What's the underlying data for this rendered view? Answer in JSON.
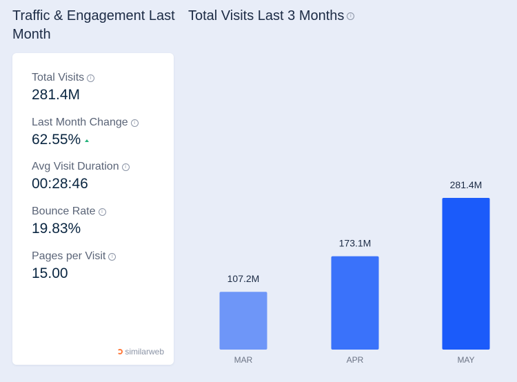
{
  "left_panel": {
    "title": "Traffic & Engagement Last Month",
    "metrics": [
      {
        "label": "Total Visits",
        "value": "281.4M"
      },
      {
        "label": "Last Month Change",
        "value": "62.55%",
        "trend": "up"
      },
      {
        "label": "Avg Visit Duration",
        "value": "00:28:46"
      },
      {
        "label": "Bounce Rate",
        "value": "19.83%"
      },
      {
        "label": "Pages per Visit",
        "value": "15.00"
      }
    ],
    "brand": "similarweb"
  },
  "chart_data": {
    "type": "bar",
    "title": "Total Visits Last 3 Months",
    "categories": [
      "MAR",
      "APR",
      "MAY"
    ],
    "values": [
      107.2,
      173.1,
      281.4
    ],
    "data_labels": [
      "107.2M",
      "173.1M",
      "281.4M"
    ],
    "units": "M",
    "ylim": [
      0,
      281.4
    ],
    "grid": false,
    "legend": "none",
    "bar_colors": [
      "#6e96f8",
      "#3a72fa",
      "#1b5bfa"
    ]
  },
  "colors": {
    "background": "#e8edf8",
    "card": "#ffffff",
    "accent": "#1b5bfa",
    "trend_up": "#23b27a",
    "brand": "#ff7a3c"
  }
}
